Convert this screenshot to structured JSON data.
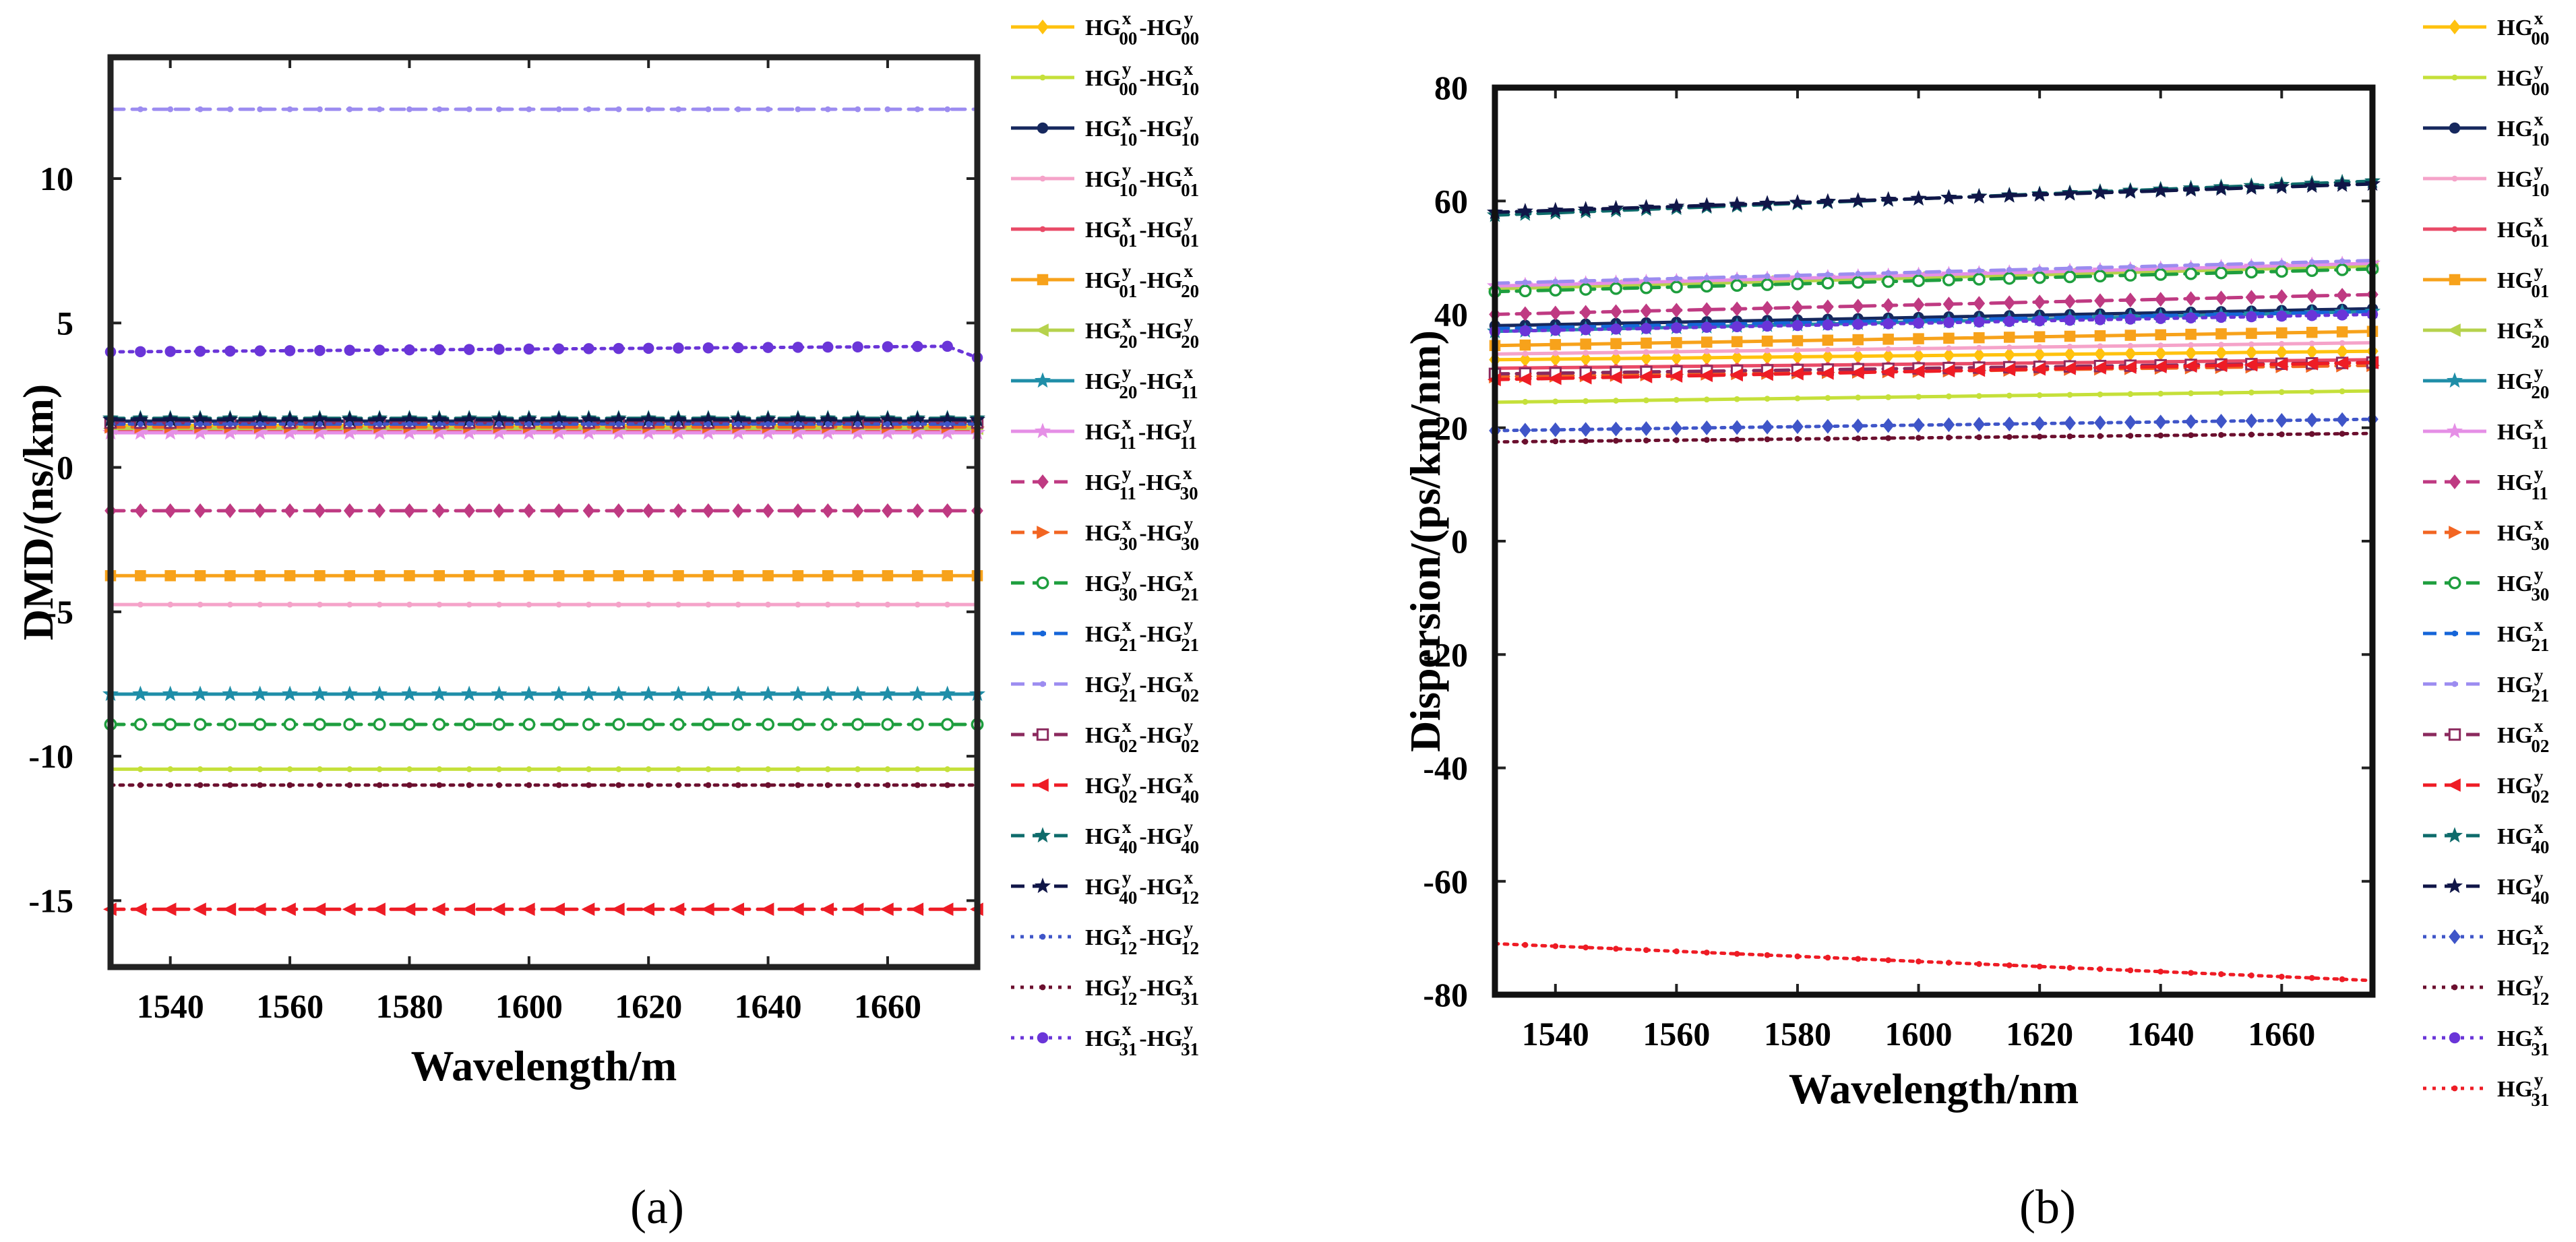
{
  "chart_data": [
    {
      "type": "line",
      "panel_label": "(a)",
      "xlabel": "Wavelength/m",
      "ylabel": "DMD/(ns/km)",
      "xlim": [
        1530,
        1675
      ],
      "ylim": [
        -17.3,
        14.2
      ],
      "x": [
        1530,
        1535,
        1540,
        1545,
        1550,
        1555,
        1560,
        1565,
        1570,
        1575,
        1580,
        1585,
        1590,
        1595,
        1600,
        1605,
        1610,
        1615,
        1620,
        1625,
        1630,
        1635,
        1640,
        1645,
        1650,
        1655,
        1660,
        1665,
        1670,
        1675
      ],
      "xticks": [
        1540,
        1560,
        1580,
        1600,
        1620,
        1640,
        1660
      ],
      "xtick_labels": [
        "1540",
        "1560",
        "1580",
        "1600",
        "1620",
        "1640",
        "1660"
      ],
      "yticks": [
        -15,
        -10,
        -5,
        0,
        5,
        10
      ],
      "ytick_labels": [
        "-15",
        "-10",
        "-5",
        "0",
        "5",
        "10"
      ],
      "legend_position": "outside-right",
      "series": [
        {
          "name": "HG00x-HG00y",
          "base": "HG",
          "sub": "00",
          "sup": "x",
          "sep": "-",
          "base2": "HG",
          "sub2": "00",
          "sup2": "y",
          "color": "#FFC20E",
          "dash": "solid",
          "marker": "diamond",
          "start": 1.45,
          "end": 1.45
        },
        {
          "name": "HG00y-HG10x",
          "base": "HG",
          "sub": "00",
          "sup": "y",
          "sep": "-",
          "base2": "HG",
          "sub2": "10",
          "sup2": "x",
          "color": "#C5E03A",
          "dash": "solid",
          "marker": "dot",
          "start": -10.45,
          "end": -10.45
        },
        {
          "name": "HG10x-HG10y",
          "base": "HG",
          "sub": "10",
          "sup": "x",
          "sep": "-",
          "base2": "HG",
          "sub2": "10",
          "sup2": "y",
          "color": "#16285E",
          "dash": "solid",
          "marker": "circle",
          "start": 1.6,
          "end": 1.6
        },
        {
          "name": "HG10y-HG01x",
          "base": "HG",
          "sub": "10",
          "sup": "y",
          "sep": "-",
          "base2": "HG",
          "sub2": "01",
          "sup2": "x",
          "color": "#F5A3C9",
          "dash": "solid",
          "marker": "dot",
          "start": -4.75,
          "end": -4.75
        },
        {
          "name": "HG01x-HG01y",
          "base": "HG",
          "sub": "01",
          "sup": "x",
          "sep": "-",
          "base2": "HG",
          "sub2": "01",
          "sup2": "y",
          "color": "#E94A67",
          "dash": "solid",
          "marker": "dot",
          "start": 1.3,
          "end": 1.3
        },
        {
          "name": "HG01y-HG20x",
          "base": "HG",
          "sub": "01",
          "sup": "y",
          "sep": "-",
          "base2": "HG",
          "sub2": "20",
          "sup2": "x",
          "color": "#F7A21B",
          "dash": "solid",
          "marker": "square",
          "start": -3.75,
          "end": -3.75
        },
        {
          "name": "HG20x-HG20y",
          "base": "HG",
          "sub": "20",
          "sup": "x",
          "sep": "-",
          "base2": "HG",
          "sub2": "20",
          "sup2": "y",
          "color": "#B6D24C",
          "dash": "solid",
          "marker": "triangle-left",
          "start": 1.35,
          "end": 1.35
        },
        {
          "name": "HG20y-HG11x",
          "base": "HG",
          "sub": "20",
          "sup": "y",
          "sep": "-",
          "base2": "HG",
          "sub2": "11",
          "sup2": "x",
          "color": "#1F8EA8",
          "dash": "solid",
          "marker": "star",
          "start": -7.85,
          "end": -7.85
        },
        {
          "name": "HG11x-HG11y",
          "base": "HG",
          "sub": "11",
          "sup": "x",
          "sep": "-",
          "base2": "HG",
          "sub2": "11",
          "sup2": "y",
          "color": "#E58FE6",
          "dash": "solid",
          "marker": "star",
          "start": 1.2,
          "end": 1.2
        },
        {
          "name": "HG11y-HG30x",
          "base": "HG",
          "sub": "11",
          "sup": "y",
          "sep": "-",
          "base2": "HG",
          "sub2": "30",
          "sup2": "x",
          "color": "#BF3A82",
          "dash": "dash",
          "marker": "diamond",
          "start": -1.5,
          "end": -1.5
        },
        {
          "name": "HG30x-HG30y",
          "base": "HG",
          "sub": "30",
          "sup": "x",
          "sep": "-",
          "base2": "HG",
          "sub2": "30",
          "sup2": "y",
          "color": "#F26522",
          "dash": "dash",
          "marker": "triangle-right",
          "start": 1.4,
          "end": 1.4
        },
        {
          "name": "HG30y-HG21x",
          "base": "HG",
          "sub": "30",
          "sup": "y",
          "sep": "-",
          "base2": "HG",
          "sub2": "21",
          "sup2": "x",
          "color": "#1E9E3E",
          "dash": "dash",
          "marker": "circle-open",
          "start": -8.9,
          "end": -8.9
        },
        {
          "name": "HG21x-HG21y",
          "base": "HG",
          "sub": "21",
          "sup": "x",
          "sep": "-",
          "base2": "HG",
          "sub2": "21",
          "sup2": "y",
          "color": "#1565D8",
          "dash": "dash",
          "marker": "dot",
          "start": 1.5,
          "end": 1.5
        },
        {
          "name": "HG21y-HG02x",
          "base": "HG",
          "sub": "21",
          "sup": "y",
          "sep": "-",
          "base2": "HG",
          "sub2": "02",
          "sup2": "x",
          "color": "#9C8CF0",
          "dash": "dash",
          "marker": "dot",
          "start": 12.4,
          "end": 12.4
        },
        {
          "name": "HG02x-HG02y",
          "base": "HG",
          "sub": "02",
          "sup": "x",
          "sep": "-",
          "base2": "HG",
          "sub2": "02",
          "sup2": "y",
          "color": "#8B2A5E",
          "dash": "dash",
          "marker": "square-open",
          "start": 1.55,
          "end": 1.55
        },
        {
          "name": "HG02y-HG40x",
          "base": "HG",
          "sub": "02",
          "sup": "y",
          "sep": "-",
          "base2": "HG",
          "sub2": "40",
          "sup2": "x",
          "color": "#EE1C25",
          "dash": "dash",
          "marker": "triangle-left",
          "start": -15.3,
          "end": -15.3
        },
        {
          "name": "HG40x-HG40y",
          "base": "HG",
          "sub": "40",
          "sup": "x",
          "sep": "-",
          "base2": "HG",
          "sub2": "40",
          "sup2": "y",
          "color": "#0E6B6B",
          "dash": "dash",
          "marker": "star",
          "start": 1.7,
          "end": 1.7
        },
        {
          "name": "HG40y-HG12x",
          "base": "HG",
          "sub": "40",
          "sup": "y",
          "sep": "-",
          "base2": "HG",
          "sub2": "12",
          "sup2": "x",
          "color": "#101648",
          "dash": "dash",
          "marker": "star",
          "start": 1.65,
          "end": 1.65
        },
        {
          "name": "HG12x-HG12y",
          "base": "HG",
          "sub": "12",
          "sup": "x",
          "sep": "-",
          "base2": "HG",
          "sub2": "12",
          "sup2": "y",
          "color": "#3F55C8",
          "dash": "dot",
          "marker": "dot",
          "start": 1.5,
          "end": 1.5
        },
        {
          "name": "HG12y-HG31x",
          "base": "HG",
          "sub": "12",
          "sup": "y",
          "sep": "-",
          "base2": "HG",
          "sub2": "31",
          "sup2": "x",
          "color": "#6B0F2E",
          "dash": "dot",
          "marker": "dot",
          "start": -11.0,
          "end": -11.0
        },
        {
          "name": "HG31x-HG31y",
          "base": "HG",
          "sub": "31",
          "sup": "x",
          "sep": "-",
          "base2": "HG",
          "sub2": "31",
          "sup2": "y",
          "color": "#6A35D8",
          "dash": "dot",
          "marker": "circle",
          "start": 4.0,
          "end": 4.2,
          "last": 3.8
        }
      ]
    },
    {
      "type": "line",
      "panel_label": "(b)",
      "xlabel": "Wavelength/nm",
      "ylabel": "Dispersion/(ps/km/nm)",
      "xlim": [
        1530,
        1675
      ],
      "ylim": [
        -80,
        80
      ],
      "x": [
        1530,
        1535,
        1540,
        1545,
        1550,
        1555,
        1560,
        1565,
        1570,
        1575,
        1580,
        1585,
        1590,
        1595,
        1600,
        1605,
        1610,
        1615,
        1620,
        1625,
        1630,
        1635,
        1640,
        1645,
        1650,
        1655,
        1660,
        1665,
        1670,
        1675
      ],
      "xticks": [
        1540,
        1560,
        1580,
        1600,
        1620,
        1640,
        1660
      ],
      "xtick_labels": [
        "1540",
        "1560",
        "1580",
        "1600",
        "1620",
        "1640",
        "1660"
      ],
      "yticks": [
        -80,
        -60,
        -40,
        -20,
        0,
        20,
        40,
        60,
        80
      ],
      "ytick_labels": [
        "-80",
        "-60",
        "-40",
        "-20",
        "0",
        "20",
        "40",
        "60",
        "80"
      ],
      "legend_position": "outside-right",
      "series": [
        {
          "name": "HG00x",
          "base": "HG",
          "sub": "00",
          "sup": "x",
          "color": "#FFC20E",
          "dash": "solid",
          "marker": "diamond",
          "start": 32.0,
          "end": 33.5
        },
        {
          "name": "HG00y",
          "base": "HG",
          "sub": "00",
          "sup": "y",
          "color": "#C5E03A",
          "dash": "solid",
          "marker": "dot",
          "start": 24.5,
          "end": 26.5
        },
        {
          "name": "HG10x",
          "base": "HG",
          "sub": "10",
          "sup": "x",
          "color": "#16285E",
          "dash": "solid",
          "marker": "circle",
          "start": 38.0,
          "end": 41.0
        },
        {
          "name": "HG10y",
          "base": "HG",
          "sub": "10",
          "sup": "y",
          "color": "#F5A3C9",
          "dash": "solid",
          "marker": "dot",
          "start": 33.0,
          "end": 35.0
        },
        {
          "name": "HG01x",
          "base": "HG",
          "sub": "01",
          "sup": "x",
          "color": "#E94A67",
          "dash": "solid",
          "marker": "dot",
          "start": 30.5,
          "end": 32.0
        },
        {
          "name": "HG01y",
          "base": "HG",
          "sub": "01",
          "sup": "y",
          "color": "#F7A21B",
          "dash": "solid",
          "marker": "square",
          "start": 34.5,
          "end": 37.0
        },
        {
          "name": "HG20x",
          "base": "HG",
          "sub": "20",
          "sup": "x",
          "color": "#B6D24C",
          "dash": "solid",
          "marker": "triangle-left",
          "start": 44.5,
          "end": 48.5
        },
        {
          "name": "HG20y",
          "base": "HG",
          "sub": "20",
          "sup": "y",
          "color": "#1F8EA8",
          "dash": "solid",
          "marker": "star",
          "start": 37.0,
          "end": 40.5
        },
        {
          "name": "HG11x",
          "base": "HG",
          "sub": "11",
          "sup": "x",
          "color": "#E58FE6",
          "dash": "solid",
          "marker": "star",
          "start": 45.0,
          "end": 49.0
        },
        {
          "name": "HG11y",
          "base": "HG",
          "sub": "11",
          "sup": "y",
          "color": "#BF3A82",
          "dash": "dash",
          "marker": "diamond",
          "start": 40.0,
          "end": 43.5
        },
        {
          "name": "HG30x",
          "base": "HG",
          "sub": "30",
          "sup": "x",
          "color": "#F26522",
          "dash": "dash",
          "marker": "triangle-right",
          "start": 29.0,
          "end": 31.0
        },
        {
          "name": "HG30y",
          "base": "HG",
          "sub": "30",
          "sup": "y",
          "color": "#1E9E3E",
          "dash": "dash",
          "marker": "circle-open",
          "start": 44.0,
          "end": 48.0
        },
        {
          "name": "HG21x",
          "base": "HG",
          "sub": "21",
          "sup": "x",
          "color": "#1565D8",
          "dash": "dash",
          "marker": "dot",
          "start": 37.5,
          "end": 40.5
        },
        {
          "name": "HG21y",
          "base": "HG",
          "sub": "21",
          "sup": "y",
          "color": "#9C8CF0",
          "dash": "dash",
          "marker": "dot",
          "start": 45.5,
          "end": 49.5
        },
        {
          "name": "HG02x",
          "base": "HG",
          "sub": "02",
          "sup": "x",
          "color": "#8B2A5E",
          "dash": "dash",
          "marker": "square-open",
          "start": 29.5,
          "end": 31.5
        },
        {
          "name": "HG02y",
          "base": "HG",
          "sub": "02",
          "sup": "y",
          "color": "#EE1C25",
          "dash": "dash",
          "marker": "triangle-left",
          "start": 28.5,
          "end": 31.5
        },
        {
          "name": "HG40x",
          "base": "HG",
          "sub": "40",
          "sup": "x",
          "color": "#0E6B6B",
          "dash": "dash",
          "marker": "star",
          "start": 57.5,
          "end": 63.5
        },
        {
          "name": "HG40y",
          "base": "HG",
          "sub": "40",
          "sup": "y",
          "color": "#101648",
          "dash": "dash",
          "marker": "star",
          "start": 58.0,
          "end": 63.0
        },
        {
          "name": "HG12x",
          "base": "HG",
          "sub": "12",
          "sup": "x",
          "color": "#3F55C8",
          "dash": "dot",
          "marker": "diamond",
          "start": 19.5,
          "end": 21.5
        },
        {
          "name": "HG12y",
          "base": "HG",
          "sub": "12",
          "sup": "y",
          "color": "#6B0F2E",
          "dash": "dot",
          "marker": "dot",
          "start": 17.5,
          "end": 19.0
        },
        {
          "name": "HG31x",
          "base": "HG",
          "sub": "31",
          "sup": "x",
          "color": "#6A35D8",
          "dash": "dot",
          "marker": "circle",
          "start": 37.0,
          "end": 40.0
        },
        {
          "name": "HG31y",
          "base": "HG",
          "sub": "31",
          "sup": "y",
          "color": "#EE1C25",
          "dash": "dot",
          "marker": "dot",
          "start": -71.0,
          "end": -77.5
        }
      ]
    }
  ]
}
